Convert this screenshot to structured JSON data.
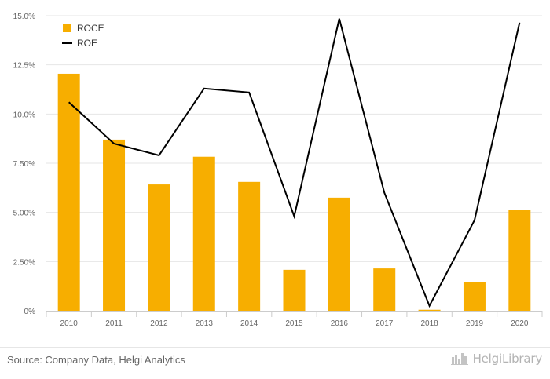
{
  "chart_data": {
    "type": "bar",
    "categories": [
      "2010",
      "2011",
      "2012",
      "2013",
      "2014",
      "2015",
      "2016",
      "2017",
      "2018",
      "2019",
      "2020"
    ],
    "series": [
      {
        "name": "ROCE",
        "type": "bar",
        "color": "#f7ae00",
        "values": [
          12.05,
          8.7,
          6.42,
          7.83,
          6.55,
          2.08,
          5.75,
          2.15,
          0.05,
          1.45,
          5.12
        ]
      },
      {
        "name": "ROE",
        "type": "line",
        "color": "#000000",
        "values": [
          10.6,
          8.5,
          7.9,
          11.3,
          11.1,
          4.8,
          14.85,
          6.0,
          0.25,
          4.6,
          14.65
        ]
      }
    ],
    "yticks": [
      "0%",
      "2.50%",
      "5.00%",
      "7.50%",
      "10.0%",
      "12.5%",
      "15.0%"
    ],
    "ylim": [
      0,
      15
    ],
    "grid": true,
    "legend_position": "top-left"
  },
  "footer": {
    "source": "Source: Company Data, Helgi Analytics",
    "logo_text": "HelgiLibrary"
  },
  "colors": {
    "bar": "#f7ae00",
    "line": "#000000",
    "grid": "#e6e6e6",
    "text": "#666666"
  }
}
